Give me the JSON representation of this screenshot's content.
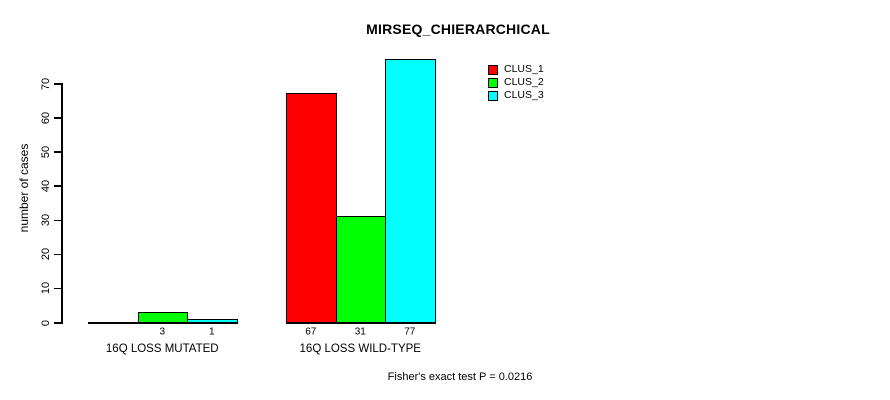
{
  "title": "MIRSEQ_CHIERARCHICAL",
  "ylabel": "number of cases",
  "footnote": "Fisher's exact test P = 0.0216",
  "legend": [
    {
      "label": "CLUS_1",
      "color": "#ff0000"
    },
    {
      "label": "CLUS_2",
      "color": "#00ff00"
    },
    {
      "label": "CLUS_3",
      "color": "#00ffff"
    }
  ],
  "chart_data": {
    "type": "bar",
    "title": "MIRSEQ_CHIERARCHICAL",
    "xlabel": "",
    "ylabel": "number of cases",
    "categories": [
      "16Q LOSS MUTATED",
      "16Q LOSS WILD-TYPE"
    ],
    "series": [
      {
        "name": "CLUS_1",
        "color": "#ff0000",
        "values": [
          0,
          67
        ]
      },
      {
        "name": "CLUS_2",
        "color": "#00ff00",
        "values": [
          3,
          31
        ]
      },
      {
        "name": "CLUS_3",
        "color": "#00ffff",
        "values": [
          1,
          77
        ]
      }
    ],
    "ylim": [
      0,
      70
    ],
    "yticks": [
      0,
      10,
      20,
      30,
      40,
      50,
      60,
      70
    ],
    "grid": false,
    "legend_position": "top-right",
    "bar_value_labels_shown": true,
    "zero_value_labels_hidden": true,
    "annotation": "Fisher's exact test P = 0.0216"
  }
}
